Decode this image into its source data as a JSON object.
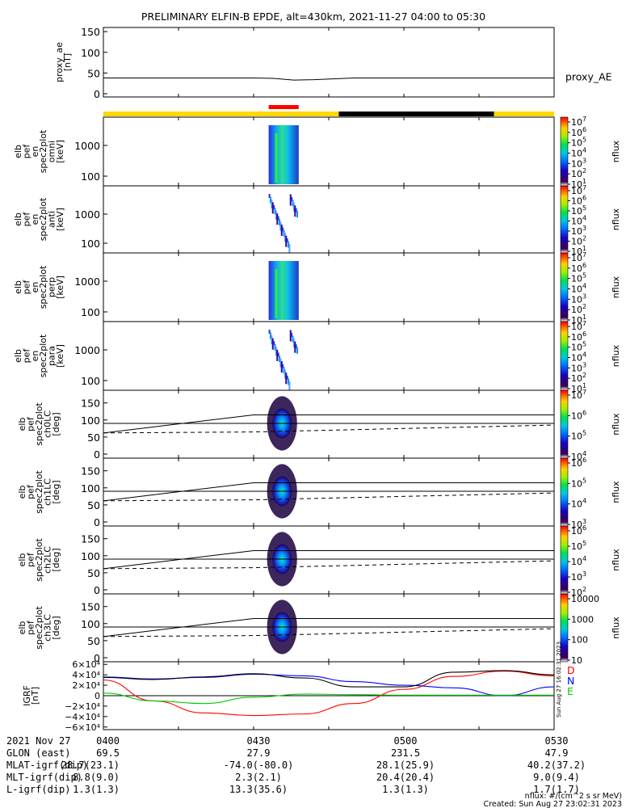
{
  "title": "PRELIMINARY ELFIN-B EPDE, alt=430km, 2021-11-27 04:00 to 05:30",
  "colors": {
    "yellow": "#ffd800",
    "black": "#000000",
    "red": "#ff0000",
    "blue": "#0000ff",
    "green": "#00cc00"
  },
  "chart_data": [
    {
      "type": "line",
      "panel": "proxy_ae",
      "ylabel": "proxy_ae [nT]",
      "ylim": [
        0,
        160
      ],
      "yticks": [
        "150",
        "100",
        "50",
        "0"
      ],
      "legend": "proxy_AE",
      "x": [
        "04:00",
        "04:20",
        "04:30",
        "04:34",
        "04:38",
        "04:42",
        "04:50",
        "05:00",
        "05:30"
      ],
      "values": [
        38,
        38,
        38,
        37,
        33,
        34,
        38,
        38,
        38
      ]
    },
    {
      "type": "bar",
      "panel": "orbit-bar",
      "segments": [
        {
          "color": "yellow",
          "x": [
            "04:00",
            "04:47"
          ]
        },
        {
          "color": "black",
          "x": [
            "04:47",
            "05:18"
          ]
        },
        {
          "color": "yellow",
          "x": [
            "05:18",
            "05:30"
          ]
        }
      ],
      "science_zone": {
        "color": "red",
        "x": [
          "04:33",
          "04:39"
        ]
      }
    },
    {
      "type": "heatmap",
      "panel": "omni",
      "ylabel": "elb pef en spec2plot omni [keV]",
      "yticks": [
        "1000",
        "100"
      ],
      "cbar_ticks": [
        "10^7",
        "10^6",
        "10^5",
        "10^4",
        "10^3",
        "10^2",
        "10^1"
      ],
      "cbar_label": "nflux",
      "active_x": [
        "04:33",
        "04:39"
      ]
    },
    {
      "type": "heatmap",
      "panel": "anti",
      "ylabel": "elb pef en spec2plot anti [keV]",
      "yticks": [
        "1000",
        "100"
      ],
      "cbar_ticks": [
        "10^7",
        "10^6",
        "10^5",
        "10^4",
        "10^3",
        "10^2",
        "10^1"
      ],
      "cbar_label": "nflux",
      "active_x": [
        "04:33",
        "04:39"
      ]
    },
    {
      "type": "heatmap",
      "panel": "perp",
      "ylabel": "elb pef en spec2plot perp [keV]",
      "yticks": [
        "1000",
        "100"
      ],
      "cbar_ticks": [
        "10^7",
        "10^6",
        "10^5",
        "10^4",
        "10^3",
        "10^2",
        "10^1"
      ],
      "cbar_label": "nflux",
      "active_x": [
        "04:33",
        "04:39"
      ]
    },
    {
      "type": "heatmap",
      "panel": "para",
      "ylabel": "elb pef en spec2plot para [keV]",
      "yticks": [
        "1000",
        "100"
      ],
      "cbar_ticks": [
        "10^7",
        "10^6",
        "10^5",
        "10^4",
        "10^3",
        "10^2",
        "10^1"
      ],
      "cbar_label": "nflux",
      "active_x": [
        "04:33",
        "04:39"
      ]
    },
    {
      "type": "heatmap",
      "panel": "ch0LC",
      "ylabel": "elb pef spec2plot ch0LC [deg]",
      "yticks": [
        "150",
        "100",
        "50",
        "0"
      ],
      "cbar_ticks": [
        "10^7",
        "10^6",
        "10^5",
        "10^4"
      ],
      "cbar_label": "nflux",
      "lines": {
        "solid_rising": {
          "x": [
            "04:00",
            "04:30"
          ],
          "y": [
            62,
            115
          ]
        },
        "solid_flat": [
          115,
          90
        ],
        "dashed": {
          "x": [
            "04:00",
            "04:30",
            "05:30"
          ],
          "y": [
            62,
            65,
            85
          ]
        }
      }
    },
    {
      "type": "heatmap",
      "panel": "ch1LC",
      "ylabel": "elb pef spec2plot ch1LC [deg]",
      "yticks": [
        "150",
        "100",
        "50",
        "0"
      ],
      "cbar_ticks": [
        "10^6",
        "10^5",
        "10^4",
        "10^3"
      ],
      "cbar_label": "nflux"
    },
    {
      "type": "heatmap",
      "panel": "ch2LC",
      "ylabel": "elb pef spec2plot ch2LC [deg]",
      "yticks": [
        "150",
        "100",
        "50",
        "0"
      ],
      "cbar_ticks": [
        "10^6",
        "10^5",
        "10^4",
        "10^3",
        "10^2"
      ],
      "cbar_label": "nflux"
    },
    {
      "type": "heatmap",
      "panel": "ch3LC",
      "ylabel": "elb pef spec2plot ch3LC [deg]",
      "yticks": [
        "150",
        "100",
        "50",
        "0"
      ],
      "cbar_ticks": [
        "10000",
        "1000",
        "100",
        "10"
      ],
      "cbar_label": "nflux"
    },
    {
      "type": "line",
      "panel": "igrf",
      "ylabel": "IGRF [nT]",
      "ylim": [
        -65000,
        65000
      ],
      "yticks": [
        "6×10⁴",
        "4×10⁴",
        "2×10⁴",
        "0",
        "−2×10⁴",
        "−4×10⁴",
        "−6×10⁴"
      ],
      "legend": [
        "D",
        "N",
        "E"
      ],
      "x": [
        "04:00",
        "04:10",
        "04:20",
        "04:30",
        "04:40",
        "04:50",
        "05:00",
        "05:10",
        "05:20",
        "05:30"
      ],
      "series": [
        {
          "name": "D",
          "color": "red",
          "values": [
            30000,
            -10000,
            -33000,
            -38000,
            -35000,
            -15000,
            12000,
            37000,
            47000,
            38000
          ]
        },
        {
          "name": "N",
          "color": "blue",
          "values": [
            36000,
            32000,
            35000,
            41000,
            38000,
            27000,
            20000,
            15000,
            0,
            17000
          ]
        },
        {
          "name": "E",
          "color": "green",
          "values": [
            5000,
            -10000,
            -15000,
            -3000,
            3000,
            2000,
            1000,
            1000,
            1000,
            1000
          ]
        },
        {
          "name": "",
          "color": "black",
          "values": [
            35000,
            31000,
            36000,
            42000,
            34000,
            17000,
            17000,
            45000,
            48000,
            40000
          ]
        }
      ]
    }
  ],
  "footer": {
    "rows": [
      {
        "label": "2021 Nov 27",
        "v1": "0400",
        "v2": "0430",
        "v3": "0500",
        "v4": "0530"
      },
      {
        "label": "GLON (east)",
        "v1": "69.5",
        "v2": "27.9",
        "v3": "231.5",
        "v4": "47.9"
      },
      {
        "label": "MLAT-igrf(dip)",
        "v1": "28.7(23.1)",
        "v2": "-74.0(-80.0)",
        "v3": "28.1(25.9)",
        "v4": "40.2(37.2)"
      },
      {
        "label": "MLT-igrf(dip)",
        "v1": "8.8(9.0)",
        "v2": "2.3(2.1)",
        "v3": "20.4(20.4)",
        "v4": "9.0(9.4)"
      },
      {
        "label": "L-igrf(dip)",
        "v1": "1.3(1.3)",
        "v2": "13.3(35.6)",
        "v3": "1.3(1.3)",
        "v4": "1.7(1.7)"
      }
    ],
    "units_note": "nflux: #/(cm^2 s sr MeV)",
    "created": "Created: Sun Aug 27 23:02:31 2023",
    "side_stamp": "Sun Aug 27 16:02:31 2023"
  }
}
